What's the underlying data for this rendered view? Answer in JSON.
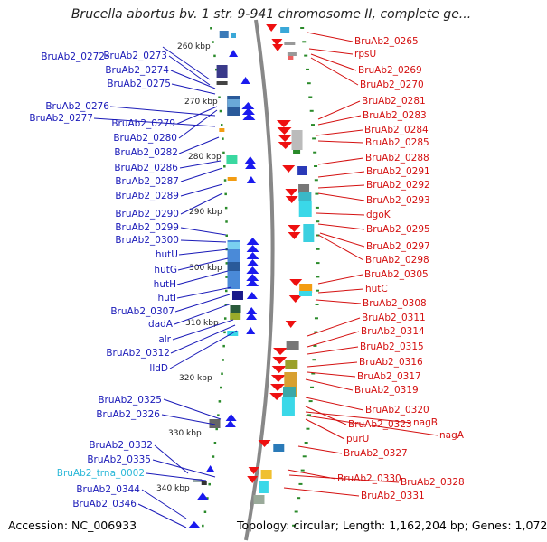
{
  "title": "Brucella abortus bv. 1 str. 9-941 chromosome II, complete ge...",
  "footer": {
    "accession": "Accession: NC_006933",
    "topology": "Topology: circular; Length: 1,162,204 bp; Genes: 1,072"
  },
  "colors": {
    "left_label": "#1a1ab8",
    "right_label": "#d41010",
    "trna_label": "#2ab8d8",
    "backbone": "#888888",
    "tick": "#2a8a2a",
    "forward_gene": "#1a1aee",
    "reverse_gene": "#ee1010"
  },
  "scale_labels": [
    "260 kbp",
    "270 kbp",
    "280 kbp",
    "290 kbp",
    "300 kbp",
    "310 kbp",
    "320 kbp",
    "330 kbp",
    "340 kbp"
  ],
  "left_labels": [
    "BruAb2_0272",
    "BruAb2_0273",
    "BruAb2_0274",
    "BruAb2_0275",
    "BruAb2_0276",
    "BruAb2_0277",
    "BruAb2_0279",
    "BruAb2_0280",
    "BruAb2_0282",
    "BruAb2_0286",
    "BruAb2_0287",
    "BruAb2_0289",
    "BruAb2_0290",
    "BruAb2_0299",
    "BruAb2_0300",
    "hutU",
    "hutG",
    "hutH",
    "hutI",
    "BruAb2_0307",
    "dadA",
    "alr",
    "BruAb2_0312",
    "lldD",
    "BruAb2_0325",
    "BruAb2_0326",
    "BruAb2_0332",
    "BruAb2_0335",
    "BruAb2_trna_0002",
    "BruAb2_0344",
    "BruAb2_0346"
  ],
  "right_labels": [
    "BruAb2_0265",
    "rpsU",
    "BruAb2_0269",
    "BruAb2_0270",
    "BruAb2_0281",
    "BruAb2_0283",
    "BruAb2_0284",
    "BruAb2_0285",
    "BruAb2_0288",
    "BruAb2_0291",
    "BruAb2_0292",
    "BruAb2_0293",
    "dgoK",
    "BruAb2_0295",
    "BruAb2_0297",
    "BruAb2_0298",
    "BruAb2_0305",
    "hutC",
    "BruAb2_0308",
    "BruAb2_0311",
    "BruAb2_0314",
    "BruAb2_0315",
    "BruAb2_0316",
    "BruAb2_0317",
    "BruAb2_0319",
    "BruAb2_0320",
    "BruAb2_0323",
    "nagB",
    "nagA",
    "purU",
    "BruAb2_0327",
    "BruAb2_0330",
    "BruAb2_0328",
    "BruAb2_0331"
  ]
}
